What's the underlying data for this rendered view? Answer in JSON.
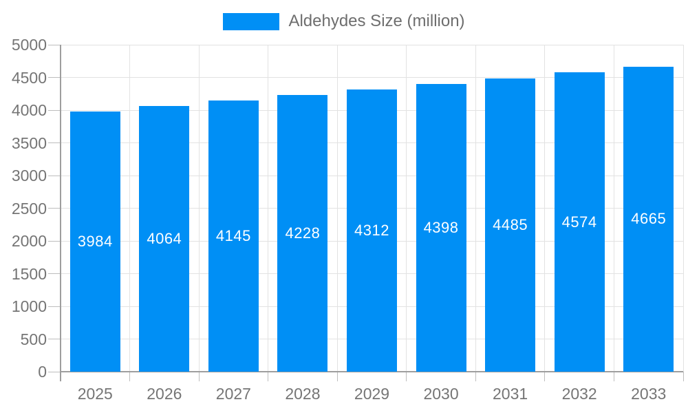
{
  "chart_data": {
    "type": "bar",
    "title": "",
    "legend": "Aldehydes Size (million)",
    "legend_position": "top-center",
    "categories": [
      "2025",
      "2026",
      "2027",
      "2028",
      "2029",
      "2030",
      "2031",
      "2032",
      "2033"
    ],
    "series": [
      {
        "name": "Aldehydes Size (million)",
        "values": [
          3984,
          4064,
          4145,
          4228,
          4312,
          4398,
          4485,
          4574,
          4665
        ]
      }
    ],
    "xlabel": "",
    "ylabel": "",
    "ylim": [
      0,
      5000
    ],
    "ytick_step": 500,
    "ytick_labels": [
      "0",
      "500",
      "1000",
      "1500",
      "2000",
      "2500",
      "3000",
      "3500",
      "4000",
      "4500",
      "5000"
    ],
    "grid": true,
    "value_labels": "inside-center",
    "colors": {
      "bar": "#008ff5",
      "grid": "#e2e2e2",
      "tick": "#bdbdbd",
      "axis": "#9e9e9e",
      "axis_label": "#757575",
      "value_label": "#ffffff",
      "legend_text": "#6e6e6e",
      "background": "#ffffff"
    }
  }
}
